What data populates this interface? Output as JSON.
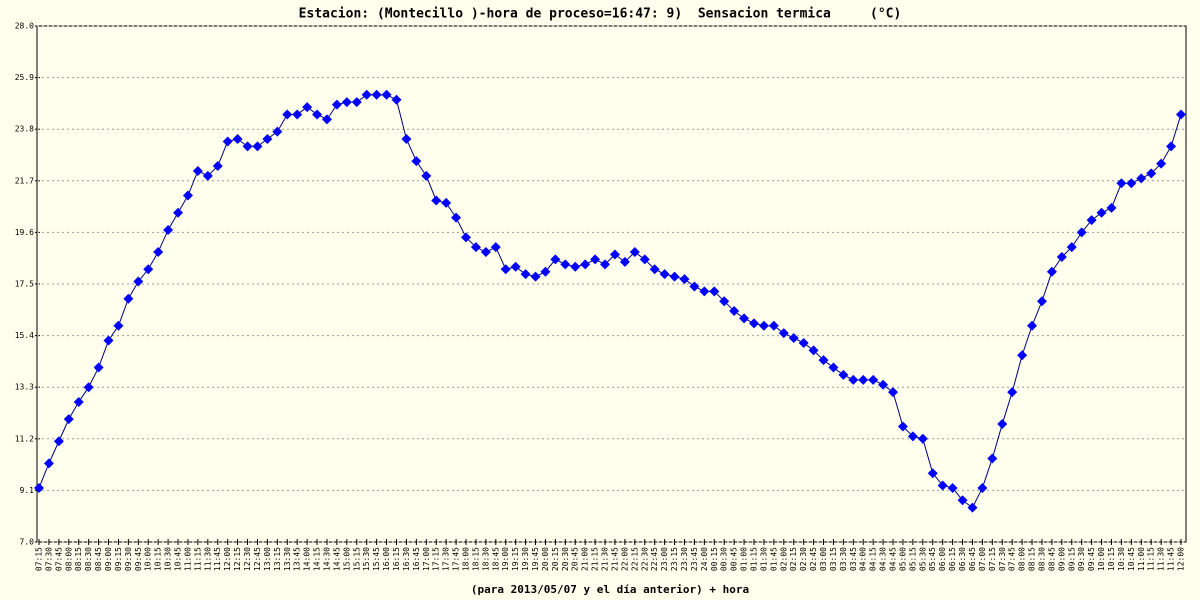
{
  "chart_data": {
    "type": "line",
    "title": "Estacion: (Montecillo )-hora de proceso=16:47: 9)  Sensacion termica     (°C)",
    "x_label": "(para 2013/05/07 y el día anterior) + hora",
    "categories": [
      "07:15",
      "07:30",
      "07:45",
      "08:00",
      "08:15",
      "08:30",
      "08:45",
      "09:00",
      "09:15",
      "09:30",
      "09:45",
      "10:00",
      "10:15",
      "10:30",
      "10:45",
      "11:00",
      "11:15",
      "11:30",
      "11:45",
      "12:00",
      "12:15",
      "12:30",
      "12:45",
      "13:00",
      "13:15",
      "13:30",
      "13:45",
      "14:00",
      "14:15",
      "14:30",
      "14:45",
      "15:00",
      "15:15",
      "15:30",
      "15:45",
      "16:00",
      "16:15",
      "16:30",
      "16:45",
      "17:00",
      "17:15",
      "17:30",
      "17:45",
      "18:00",
      "18:15",
      "18:30",
      "18:45",
      "19:00",
      "19:15",
      "19:30",
      "19:45",
      "20:00",
      "20:15",
      "20:30",
      "20:45",
      "21:00",
      "21:15",
      "21:30",
      "21:45",
      "22:00",
      "22:15",
      "22:30",
      "22:45",
      "23:00",
      "23:15",
      "23:30",
      "23:45",
      "24:00",
      "00:15",
      "00:30",
      "00:45",
      "01:00",
      "01:15",
      "01:30",
      "01:45",
      "02:00",
      "02:15",
      "02:30",
      "02:45",
      "03:00",
      "03:15",
      "03:30",
      "03:45",
      "04:00",
      "04:15",
      "04:30",
      "04:45",
      "05:00",
      "05:15",
      "05:30",
      "05:45",
      "06:00",
      "06:15",
      "06:30",
      "06:45",
      "07:00",
      "07:15",
      "07:30",
      "07:45",
      "08:00",
      "08:15",
      "08:30",
      "08:45",
      "09:00",
      "09:15",
      "09:30",
      "09:45",
      "10:00",
      "10:15",
      "10:30",
      "10:45",
      "11:00",
      "11:15",
      "11:30",
      "11:45",
      "12:00"
    ],
    "series": [
      {
        "color": "#0000ff",
        "line_color": "#000080",
        "values": [
          9.2,
          10.2,
          11.1,
          12.0,
          12.7,
          13.3,
          14.1,
          15.2,
          15.8,
          16.9,
          17.6,
          18.1,
          18.8,
          19.7,
          20.4,
          21.1,
          22.1,
          21.9,
          22.3,
          23.3,
          23.4,
          23.1,
          23.1,
          23.4,
          23.7,
          24.4,
          24.4,
          24.7,
          24.4,
          24.2,
          24.8,
          24.9,
          24.9,
          25.2,
          25.2,
          25.2,
          25.0,
          23.4,
          22.5,
          21.9,
          20.9,
          20.8,
          20.2,
          19.4,
          19.0,
          18.8,
          19.0,
          18.1,
          18.2,
          17.9,
          17.8,
          18.0,
          18.5,
          18.3,
          18.2,
          18.3,
          18.5,
          18.3,
          18.7,
          18.4,
          18.8,
          18.5,
          18.1,
          17.9,
          17.8,
          17.7,
          17.4,
          17.2,
          17.2,
          16.8,
          16.4,
          16.1,
          15.9,
          15.8,
          15.8,
          15.5,
          15.3,
          15.1,
          14.8,
          14.4,
          14.1,
          13.8,
          13.6,
          13.6,
          13.6,
          13.4,
          13.1,
          11.7,
          11.3,
          11.2,
          9.8,
          9.3,
          9.2,
          8.7,
          8.4,
          9.2,
          10.4,
          11.8,
          13.1,
          14.6,
          15.8,
          16.8,
          18.0,
          18.6,
          19.0,
          19.6,
          20.1,
          20.4,
          20.6,
          21.6,
          21.6,
          21.8,
          22.0,
          22.4,
          23.1,
          24.4
        ]
      }
    ],
    "ylim": [
      7,
      28
    ],
    "yticks": [
      {
        "value": 7,
        "label": "7.0"
      },
      9.1,
      11.2,
      13.3,
      15.4,
      17.5,
      19.6,
      21.7,
      23.8,
      25.9,
      {
        "value": 28,
        "label": "28.0"
      }
    ],
    "grid": true,
    "background": "#ffffee"
  }
}
